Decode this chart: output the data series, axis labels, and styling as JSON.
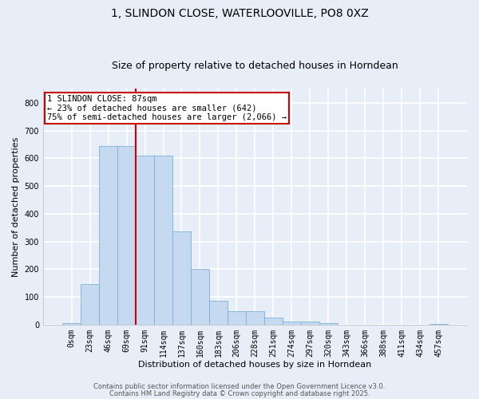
{
  "title": "1, SLINDON CLOSE, WATERLOOVILLE, PO8 0XZ",
  "subtitle": "Size of property relative to detached houses in Horndean",
  "xlabel": "Distribution of detached houses by size in Horndean",
  "ylabel": "Number of detached properties",
  "categories": [
    "0sqm",
    "23sqm",
    "46sqm",
    "69sqm",
    "91sqm",
    "114sqm",
    "137sqm",
    "160sqm",
    "183sqm",
    "206sqm",
    "228sqm",
    "251sqm",
    "274sqm",
    "297sqm",
    "320sqm",
    "343sqm",
    "366sqm",
    "388sqm",
    "411sqm",
    "434sqm",
    "457sqm"
  ],
  "bar_values": [
    5,
    145,
    645,
    645,
    610,
    610,
    335,
    200,
    85,
    48,
    48,
    25,
    12,
    12,
    4,
    0,
    0,
    0,
    0,
    0,
    3
  ],
  "bar_color": "#c5d9f0",
  "bar_edgecolor": "#7ab0d4",
  "background_color": "#e8eef8",
  "grid_color": "#ffffff",
  "vline_x": 3.5,
  "vline_color": "#cc0000",
  "annotation_text": "1 SLINDON CLOSE: 87sqm\n← 23% of detached houses are smaller (642)\n75% of semi-detached houses are larger (2,066) →",
  "annotation_box_facecolor": "#ffffff",
  "annotation_box_edgecolor": "#cc0000",
  "ylim": [
    0,
    850
  ],
  "yticks": [
    0,
    100,
    200,
    300,
    400,
    500,
    600,
    700,
    800
  ],
  "footer_line1": "Contains HM Land Registry data © Crown copyright and database right 2025.",
  "footer_line2": "Contains public sector information licensed under the Open Government Licence v3.0.",
  "title_fontsize": 10,
  "subtitle_fontsize": 9,
  "tick_fontsize": 7,
  "ylabel_fontsize": 8,
  "xlabel_fontsize": 8,
  "annotation_fontsize": 7.5,
  "footer_fontsize": 6
}
